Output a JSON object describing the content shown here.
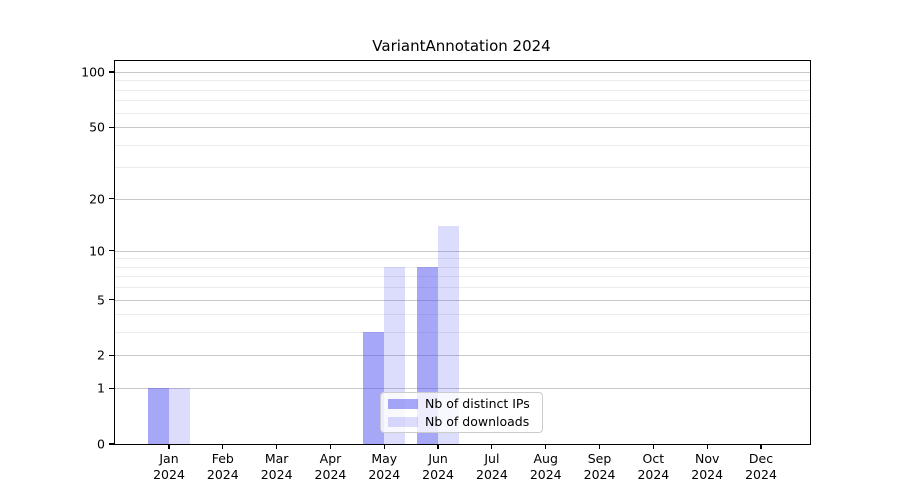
{
  "title": "VariantAnnotation 2024",
  "chart_data": {
    "type": "bar",
    "title": "VariantAnnotation 2024",
    "categories": [
      "Jan",
      "Feb",
      "Mar",
      "Apr",
      "May",
      "Jun",
      "Jul",
      "Aug",
      "Sep",
      "Oct",
      "Nov",
      "Dec"
    ],
    "category_year": "2024",
    "series": [
      {
        "name": "Nb of distinct IPs",
        "color": "rgba(80,80,240,0.5)",
        "values": [
          1,
          0,
          0,
          0,
          3,
          8,
          0,
          0,
          0,
          0,
          0,
          0
        ]
      },
      {
        "name": "Nb of downloads",
        "color": "rgba(80,80,240,0.2)",
        "values": [
          1,
          0,
          0,
          0,
          8,
          14,
          0,
          0,
          0,
          0,
          0,
          0
        ]
      }
    ],
    "xlabel": "",
    "ylabel": "",
    "y_axis": {
      "scale": "log1p",
      "ticks": [
        0,
        1,
        2,
        5,
        10,
        20,
        50,
        100
      ],
      "minor_gridlines": [
        3,
        4,
        6,
        7,
        8,
        9,
        30,
        40,
        60,
        70,
        80,
        90
      ],
      "max_decades": 2.064
    },
    "grid": true,
    "legend_position": "inside bottom, right of center"
  },
  "colors": {
    "major_grid": "#c8c8c8",
    "minor_grid": "#ebebeb",
    "spine": "#000000",
    "text": "#000000",
    "background": "#ffffff"
  }
}
